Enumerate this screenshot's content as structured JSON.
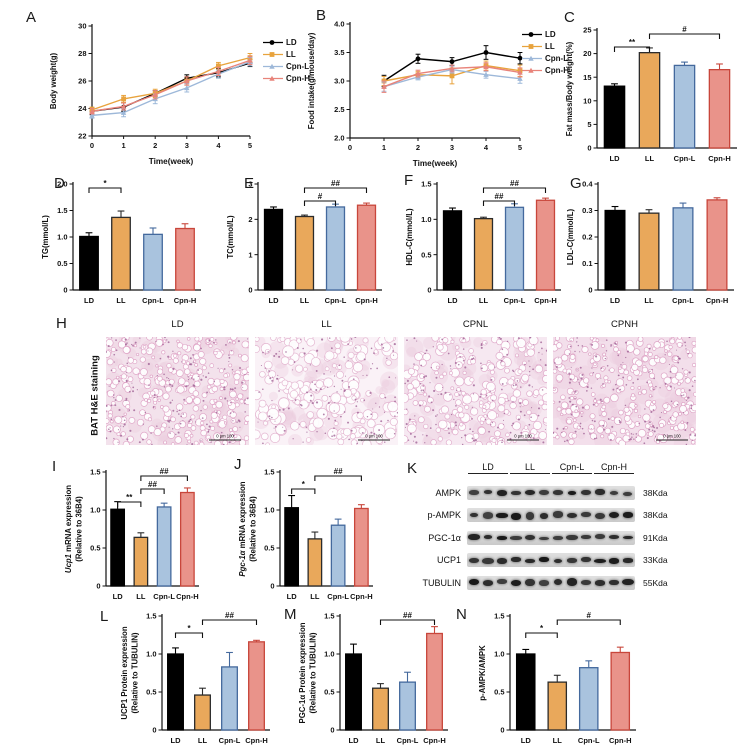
{
  "panel_labels": {
    "A": "A",
    "B": "B",
    "C": "C",
    "D": "D",
    "E": "E",
    "F": "F",
    "G": "G",
    "H": "H",
    "I": "I",
    "J": "J",
    "K": "K",
    "L": "L",
    "M": "M",
    "N": "N"
  },
  "groups": [
    "LD",
    "LL",
    "Cpn-L",
    "Cpn-H"
  ],
  "group_styles": {
    "LD": {
      "fill": "#000000",
      "edge": "#000000",
      "line": "#000000",
      "marker": "circle"
    },
    "LL": {
      "fill": "#E9A85B",
      "edge": "#2b2b2b",
      "line": "#E8A33D",
      "marker": "square"
    },
    "Cpn-L": {
      "fill": "#A9C3DE",
      "edge": "#44699D",
      "line": "#9DB8D9",
      "marker": "triangle"
    },
    "Cpn-H": {
      "fill": "#E9938A",
      "edge": "#C8463B",
      "line": "#E8837A",
      "marker": "triangle"
    }
  },
  "chart_data": [
    {
      "panel": "A",
      "type": "line",
      "xlabel": "Time(week)",
      "ylabel": [
        [
          {
            "t": "Body weight(g)"
          }
        ]
      ],
      "xlim": [
        0,
        5
      ],
      "ylim": [
        22,
        30
      ],
      "x": [
        0,
        1,
        2,
        3,
        4,
        5
      ],
      "xticks": [
        0,
        1,
        2,
        3,
        4,
        5
      ],
      "xtick_labels": [
        "0",
        "1",
        "2",
        "3",
        "4",
        "5"
      ],
      "yticks": [
        22,
        24,
        26,
        28,
        30
      ],
      "ytick_labels": [
        "22",
        "24",
        "26",
        "28",
        "30"
      ],
      "series": [
        {
          "name": "LD",
          "values": [
            23.8,
            24.1,
            25.1,
            26.2,
            26.6,
            27.3
          ],
          "errors": [
            0.25,
            0.3,
            0.2,
            0.25,
            0.3,
            0.25
          ]
        },
        {
          "name": "LL",
          "values": [
            23.9,
            24.7,
            25.1,
            26.0,
            27.1,
            27.7
          ],
          "errors": [
            0.2,
            0.25,
            0.3,
            0.3,
            0.25,
            0.3
          ]
        },
        {
          "name": "Cpn-L",
          "values": [
            23.5,
            23.7,
            24.7,
            25.5,
            26.5,
            27.4
          ],
          "errors": [
            0.2,
            0.3,
            0.35,
            0.3,
            0.3,
            0.3
          ]
        },
        {
          "name": "Cpn-H",
          "values": [
            23.8,
            24.15,
            25.0,
            26.0,
            26.7,
            27.5
          ],
          "errors": [
            0.2,
            0.25,
            0.3,
            0.3,
            0.3,
            0.3
          ]
        }
      ]
    },
    {
      "panel": "B",
      "type": "line",
      "xlabel": "Time(week)",
      "ylabel": [
        [
          {
            "t": "Food intake(g/mouse/day)"
          }
        ]
      ],
      "xlim": [
        0,
        5
      ],
      "ylim": [
        2,
        4
      ],
      "x": [
        1,
        2,
        3,
        4,
        5
      ],
      "xticks": [
        0,
        1,
        2,
        3,
        4,
        5
      ],
      "xtick_labels": [
        "0",
        "1",
        "2",
        "3",
        "4",
        "5"
      ],
      "yticks": [
        2,
        2.5,
        3,
        3.5,
        4
      ],
      "ytick_labels": [
        "2.0",
        "2.5",
        "3.0",
        "3.5",
        "4.0"
      ],
      "series": [
        {
          "name": "LD",
          "values": [
            3.0,
            3.39,
            3.34,
            3.5,
            3.4
          ],
          "errors": [
            0.1,
            0.08,
            0.07,
            0.12,
            0.1
          ]
        },
        {
          "name": "LL",
          "values": [
            3.0,
            3.11,
            3.09,
            3.27,
            3.18
          ],
          "errors": [
            0.08,
            0.06,
            0.14,
            0.08,
            0.1
          ]
        },
        {
          "name": "Cpn-L",
          "values": [
            2.9,
            3.07,
            3.2,
            3.11,
            3.04
          ],
          "errors": [
            0.08,
            0.05,
            0.06,
            0.06,
            0.08
          ]
        },
        {
          "name": "Cpn-H",
          "values": [
            2.9,
            3.13,
            3.22,
            3.25,
            3.15
          ],
          "errors": [
            0.1,
            0.06,
            0.06,
            0.07,
            0.08
          ]
        }
      ]
    },
    {
      "panel": "C",
      "type": "bar",
      "ylabel": [
        [
          {
            "t": "Fat mass/Body weight(%)"
          }
        ]
      ],
      "ylim": [
        0,
        25
      ],
      "yticks": [
        0,
        5,
        10,
        15,
        20,
        25
      ],
      "ytick_labels": [
        "0",
        "5",
        "10",
        "15",
        "20",
        "25"
      ],
      "categories": [
        "LD",
        "LL",
        "Cpn-L",
        "Cpn-H"
      ],
      "values": [
        13.1,
        20.2,
        17.5,
        16.6
      ],
      "errors": [
        0.5,
        1.0,
        0.7,
        1.2
      ],
      "sig": [
        {
          "from": 0,
          "to": 1,
          "label": "**",
          "level": 0
        },
        {
          "from": 1,
          "to": 3,
          "label": "#",
          "level": 1
        }
      ]
    },
    {
      "panel": "D",
      "type": "bar",
      "ylabel": [
        [
          {
            "t": "TG(mmol/L)"
          }
        ]
      ],
      "ylim": [
        0,
        2
      ],
      "yticks": [
        0,
        0.5,
        1,
        1.5,
        2
      ],
      "ytick_labels": [
        "0",
        "0.5",
        "1.0",
        "1.5",
        "2.0"
      ],
      "categories": [
        "LD",
        "LL",
        "Cpn-L",
        "Cpn-H"
      ],
      "values": [
        1.01,
        1.37,
        1.05,
        1.16
      ],
      "errors": [
        0.07,
        0.12,
        0.12,
        0.09
      ],
      "sig": [
        {
          "from": 0,
          "to": 1,
          "label": "*",
          "level": 0
        }
      ]
    },
    {
      "panel": "E",
      "type": "bar",
      "ylabel": [
        [
          {
            "t": "TC(mmol/L)"
          }
        ]
      ],
      "ylim": [
        0,
        3
      ],
      "yticks": [
        0,
        1,
        2,
        3
      ],
      "ytick_labels": [
        "0",
        "1",
        "2",
        "3"
      ],
      "categories": [
        "LD",
        "LL",
        "Cpn-L",
        "Cpn-H"
      ],
      "values": [
        2.28,
        2.08,
        2.35,
        2.4
      ],
      "errors": [
        0.07,
        0.04,
        0.08,
        0.06
      ],
      "sig": [
        {
          "from": 1,
          "to": 2,
          "label": "#",
          "level": 0
        },
        {
          "from": 1,
          "to": 3,
          "label": "##",
          "level": 1
        }
      ]
    },
    {
      "panel": "F",
      "type": "bar",
      "ylabel": [
        [
          {
            "t": "HDL-C(mmol/L)"
          }
        ]
      ],
      "ylim": [
        0,
        1.5
      ],
      "yticks": [
        0,
        0.5,
        1,
        1.5
      ],
      "ytick_labels": [
        "0",
        "0.5",
        "1.0",
        "1.5"
      ],
      "categories": [
        "LD",
        "LL",
        "Cpn-L",
        "Cpn-H"
      ],
      "values": [
        1.12,
        1.01,
        1.17,
        1.27
      ],
      "errors": [
        0.04,
        0.02,
        0.05,
        0.03
      ],
      "sig": [
        {
          "from": 1,
          "to": 2,
          "label": "##",
          "level": 0
        },
        {
          "from": 1,
          "to": 3,
          "label": "##",
          "level": 1
        }
      ]
    },
    {
      "panel": "G",
      "type": "bar",
      "ylabel": [
        [
          {
            "t": "LDL-C(mmol/L)"
          }
        ]
      ],
      "ylim": [
        0,
        0.4
      ],
      "yticks": [
        0,
        0.1,
        0.2,
        0.3,
        0.4
      ],
      "ytick_labels": [
        "0",
        "0.1",
        "0.2",
        "0.3",
        "0.4"
      ],
      "categories": [
        "LD",
        "LL",
        "Cpn-L",
        "Cpn-H"
      ],
      "values": [
        0.3,
        0.29,
        0.31,
        0.34
      ],
      "errors": [
        0.015,
        0.013,
        0.018,
        0.008
      ],
      "sig": []
    },
    {
      "panel": "I",
      "type": "bar",
      "ylabel": [
        [
          {
            "t": "Ucp1",
            "i": true
          },
          {
            "t": " mRNA expression"
          }
        ],
        [
          {
            "t": "(Relative to 36B4)"
          }
        ]
      ],
      "ylim": [
        0,
        1.5
      ],
      "yticks": [
        0,
        0.5,
        1,
        1.5
      ],
      "ytick_labels": [
        "0",
        "0.5",
        "1.0",
        "1.5"
      ],
      "categories": [
        "LD",
        "LL",
        "Cpn-L",
        "Cpn-H"
      ],
      "values": [
        1.01,
        0.64,
        1.04,
        1.23
      ],
      "errors": [
        0.1,
        0.06,
        0.05,
        0.06
      ],
      "sig": [
        {
          "from": 0,
          "to": 1,
          "label": "**",
          "level": 0
        },
        {
          "from": 1,
          "to": 2,
          "label": "##",
          "level": 1
        },
        {
          "from": 1,
          "to": 3,
          "label": "##",
          "level": 2
        }
      ]
    },
    {
      "panel": "J",
      "type": "bar",
      "ylabel": [
        [
          {
            "t": "Pgc-1α",
            "i": true
          },
          {
            "t": " mRNA expression"
          }
        ],
        [
          {
            "t": "(Relative to 36B4)"
          }
        ]
      ],
      "ylim": [
        0,
        1.5
      ],
      "yticks": [
        0,
        0.5,
        1,
        1.5
      ],
      "ytick_labels": [
        "0",
        "0.5",
        "1.0",
        "1.5"
      ],
      "categories": [
        "LD",
        "LL",
        "Cpn-L",
        "Cpn-H"
      ],
      "values": [
        1.03,
        0.62,
        0.8,
        1.02
      ],
      "errors": [
        0.16,
        0.09,
        0.08,
        0.05
      ],
      "sig": [
        {
          "from": 0,
          "to": 1,
          "label": "*",
          "level": 0
        },
        {
          "from": 1,
          "to": 3,
          "label": "##",
          "level": 1
        }
      ]
    },
    {
      "panel": "L",
      "type": "bar",
      "ylabel": [
        [
          {
            "t": "UCP1 Protein expression"
          }
        ],
        [
          {
            "t": "(Relative to TUBULIN)"
          }
        ]
      ],
      "ylim": [
        0,
        1.5
      ],
      "yticks": [
        0,
        0.5,
        1,
        1.5
      ],
      "ytick_labels": [
        "0",
        "0.5",
        "1.0",
        "1.5"
      ],
      "categories": [
        "LD",
        "LL",
        "Cpn-L",
        "Cpn-H"
      ],
      "values": [
        1.0,
        0.46,
        0.83,
        1.16
      ],
      "errors": [
        0.08,
        0.09,
        0.19,
        0.02
      ],
      "sig": [
        {
          "from": 0,
          "to": 1,
          "label": "*",
          "level": 0
        },
        {
          "from": 1,
          "to": 3,
          "label": "##",
          "level": 1
        }
      ]
    },
    {
      "panel": "M",
      "type": "bar",
      "ylabel": [
        [
          {
            "t": "PGC-1α Protein expression"
          }
        ],
        [
          {
            "t": "(Relative to TUBULIN)"
          }
        ]
      ],
      "ylim": [
        0,
        1.5
      ],
      "yticks": [
        0,
        0.5,
        1,
        1.5
      ],
      "ytick_labels": [
        "0",
        "0.5",
        "1.0",
        "1.5"
      ],
      "categories": [
        "LD",
        "LL",
        "Cpn-L",
        "Cpn-H"
      ],
      "values": [
        1.0,
        0.55,
        0.63,
        1.27
      ],
      "errors": [
        0.13,
        0.06,
        0.13,
        0.09
      ],
      "sig": [
        {
          "from": 1,
          "to": 3,
          "label": "##",
          "level": 0
        }
      ]
    },
    {
      "panel": "N",
      "type": "bar",
      "ylabel": [
        [
          {
            "t": "p-AMPK/AMPK"
          }
        ]
      ],
      "ylim": [
        0,
        1.5
      ],
      "yticks": [
        0,
        0.5,
        1,
        1.5
      ],
      "ytick_labels": [
        "0",
        "0.5",
        "1.0",
        "1.5"
      ],
      "categories": [
        "LD",
        "LL",
        "Cpn-L",
        "Cpn-H"
      ],
      "values": [
        1.0,
        0.63,
        0.82,
        1.02
      ],
      "errors": [
        0.06,
        0.09,
        0.09,
        0.07
      ],
      "sig": [
        {
          "from": 0,
          "to": 1,
          "label": "*",
          "level": 0
        },
        {
          "from": 1,
          "to": 3,
          "label": "#",
          "level": 1
        }
      ]
    }
  ],
  "histology": {
    "row_label": "BAT H&E staining",
    "image_labels": [
      "LD",
      "LL",
      "CPNL",
      "CPNH"
    ],
    "scalebar": "0 μm 100"
  },
  "western_blot": {
    "column_labels": [
      "LD",
      "LL",
      "Cpn-L",
      "Cpn-H"
    ],
    "lanes_per_group": 3,
    "rows": [
      {
        "protein": "AMPK",
        "size": "38Kda"
      },
      {
        "protein": "p-AMPK",
        "size": "38Kda"
      },
      {
        "protein": "PGC-1α",
        "size": "91Kda"
      },
      {
        "protein": "UCP1",
        "size": "33Kda"
      },
      {
        "protein": "TUBULIN",
        "size": "55Kda"
      }
    ]
  }
}
